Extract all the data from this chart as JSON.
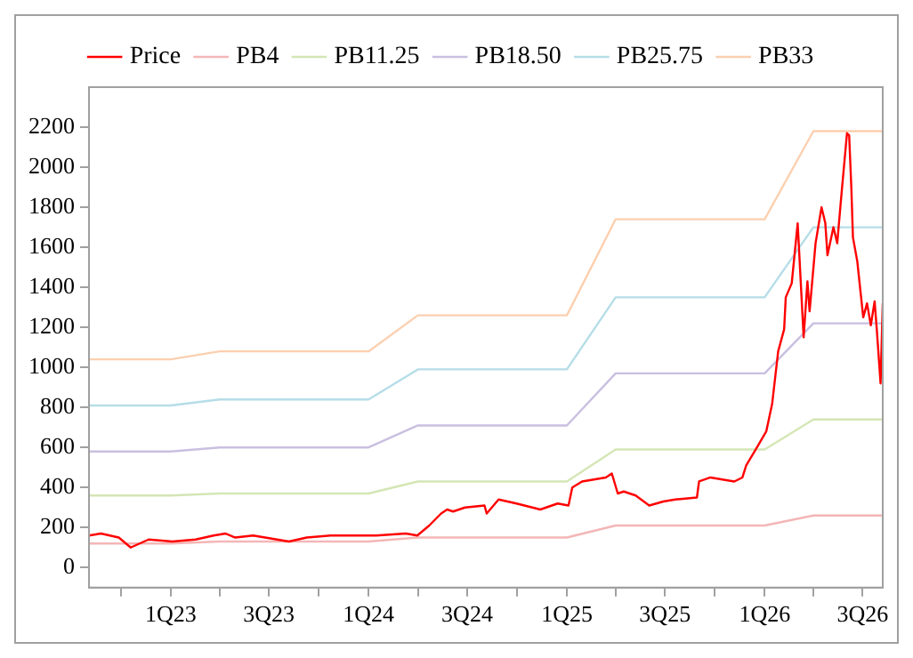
{
  "chart_data": {
    "type": "line",
    "legend": "top",
    "grid": false,
    "marker": "none",
    "line_style": "solid",
    "xlim": [
      "2022-08-03",
      "2026-08-07"
    ],
    "ylim": [
      -100,
      2400
    ],
    "xticks": [
      {
        "value": "2022-10-01",
        "label": null
      },
      {
        "value": "2023-01-01",
        "label": "1Q23"
      },
      {
        "value": "2023-04-01",
        "label": null
      },
      {
        "value": "2023-07-01",
        "label": "3Q23"
      },
      {
        "value": "2023-10-01",
        "label": null
      },
      {
        "value": "2024-01-01",
        "label": "1Q24"
      },
      {
        "value": "2024-04-01",
        "label": null
      },
      {
        "value": "2024-07-01",
        "label": "3Q24"
      },
      {
        "value": "2024-10-01",
        "label": null
      },
      {
        "value": "2025-01-01",
        "label": "1Q25"
      },
      {
        "value": "2025-04-01",
        "label": null
      },
      {
        "value": "2025-07-01",
        "label": "3Q25"
      },
      {
        "value": "2025-10-01",
        "label": null
      },
      {
        "value": "2026-01-01",
        "label": "1Q26"
      },
      {
        "value": "2026-04-01",
        "label": null
      },
      {
        "value": "2026-07-01",
        "label": "3Q26"
      }
    ],
    "yticks": [
      0,
      200,
      400,
      600,
      800,
      1000,
      1200,
      1400,
      1600,
      1800,
      2000,
      2200
    ],
    "series": [
      {
        "name": "Price",
        "color": "#ff0000",
        "x": [
          "2022-08-03",
          "2022-08-25",
          "2022-09-27",
          "2022-10-19",
          "2022-11-21",
          "2023-01-04",
          "2023-02-16",
          "2023-03-21",
          "2023-04-12",
          "2023-04-30",
          "2023-06-02",
          "2023-07-16",
          "2023-08-07",
          "2023-09-09",
          "2023-10-23",
          "2023-12-05",
          "2024-01-15",
          "2024-03-10",
          "2024-03-31",
          "2024-04-22",
          "2024-05-14",
          "2024-05-25",
          "2024-06-05",
          "2024-06-27",
          "2024-08-02",
          "2024-08-06",
          "2024-08-28",
          "2024-09-30",
          "2024-11-13",
          "2024-12-15",
          "2025-01-04",
          "2025-01-11",
          "2025-01-29",
          "2025-02-20",
          "2025-03-14",
          "2025-03-25",
          "2025-04-05",
          "2025-04-16",
          "2025-05-08",
          "2025-06-02",
          "2025-06-28",
          "2025-07-20",
          "2025-08-29",
          "2025-09-02",
          "2025-09-23",
          "2025-11-06",
          "2025-11-21",
          "2025-11-28",
          "2025-12-20",
          "2026-01-04",
          "2026-01-15",
          "2026-01-26",
          "2026-02-06",
          "2026-02-09",
          "2026-02-20",
          "2026-03-03",
          "2026-03-14",
          "2026-03-21",
          "2026-03-25",
          "2026-04-05",
          "2026-04-16",
          "2026-04-23",
          "2026-04-27",
          "2026-05-08",
          "2026-05-15",
          "2026-05-22",
          "2026-06-02",
          "2026-06-06",
          "2026-06-10",
          "2026-06-13",
          "2026-06-21",
          "2026-07-02",
          "2026-07-09",
          "2026-07-16",
          "2026-07-23",
          "2026-07-27",
          "2026-08-03",
          "2026-08-07"
        ],
        "values": [
          160,
          170,
          150,
          100,
          140,
          130,
          140,
          160,
          170,
          150,
          160,
          140,
          130,
          150,
          160,
          160,
          160,
          170,
          160,
          210,
          270,
          290,
          280,
          300,
          310,
          270,
          340,
          320,
          290,
          320,
          310,
          400,
          430,
          440,
          450,
          470,
          370,
          380,
          360,
          310,
          330,
          340,
          350,
          430,
          450,
          430,
          450,
          510,
          610,
          680,
          820,
          1080,
          1190,
          1350,
          1420,
          1720,
          1150,
          1430,
          1280,
          1620,
          1800,
          1720,
          1560,
          1700,
          1620,
          1840,
          2170,
          2160,
          1900,
          1650,
          1530,
          1250,
          1320,
          1210,
          1330,
          1190,
          920,
          1320
        ]
      },
      {
        "name": "PB4",
        "color": "#f4b6b6",
        "x": [
          "2022-08-03",
          "2023-01-01",
          "2023-04-01",
          "2024-01-01",
          "2024-04-01",
          "2025-01-01",
          "2025-04-01",
          "2026-01-01",
          "2026-04-01",
          "2026-08-07"
        ],
        "values": [
          120,
          120,
          130,
          130,
          150,
          150,
          210,
          210,
          260,
          260
        ]
      },
      {
        "name": "PB11.25",
        "color": "#d4e6b5",
        "x": [
          "2022-08-03",
          "2023-01-01",
          "2023-04-01",
          "2024-01-01",
          "2024-04-01",
          "2025-01-01",
          "2025-04-01",
          "2026-01-01",
          "2026-04-01",
          "2026-08-07"
        ],
        "values": [
          360,
          360,
          370,
          370,
          430,
          430,
          590,
          590,
          740,
          740
        ]
      },
      {
        "name": "PB18.50",
        "color": "#c9bfe0",
        "x": [
          "2022-08-03",
          "2023-01-01",
          "2023-04-01",
          "2024-01-01",
          "2024-04-01",
          "2025-01-01",
          "2025-04-01",
          "2026-01-01",
          "2026-04-01",
          "2026-08-07"
        ],
        "values": [
          580,
          580,
          600,
          600,
          710,
          710,
          970,
          970,
          1220,
          1220
        ]
      },
      {
        "name": "PB25.75",
        "color": "#b5dde8",
        "x": [
          "2022-08-03",
          "2023-01-01",
          "2023-04-01",
          "2024-01-01",
          "2024-04-01",
          "2025-01-01",
          "2025-04-01",
          "2026-01-01",
          "2026-04-01",
          "2026-08-07"
        ],
        "values": [
          810,
          810,
          840,
          840,
          990,
          990,
          1350,
          1350,
          1700,
          1700
        ]
      },
      {
        "name": "PB33",
        "color": "#fbd0b0",
        "x": [
          "2022-08-03",
          "2023-01-01",
          "2023-04-01",
          "2024-01-01",
          "2024-04-01",
          "2025-01-01",
          "2025-04-01",
          "2026-01-01",
          "2026-04-01",
          "2026-08-07"
        ],
        "values": [
          1040,
          1040,
          1080,
          1080,
          1260,
          1260,
          1740,
          1740,
          2180,
          2180
        ]
      }
    ]
  }
}
